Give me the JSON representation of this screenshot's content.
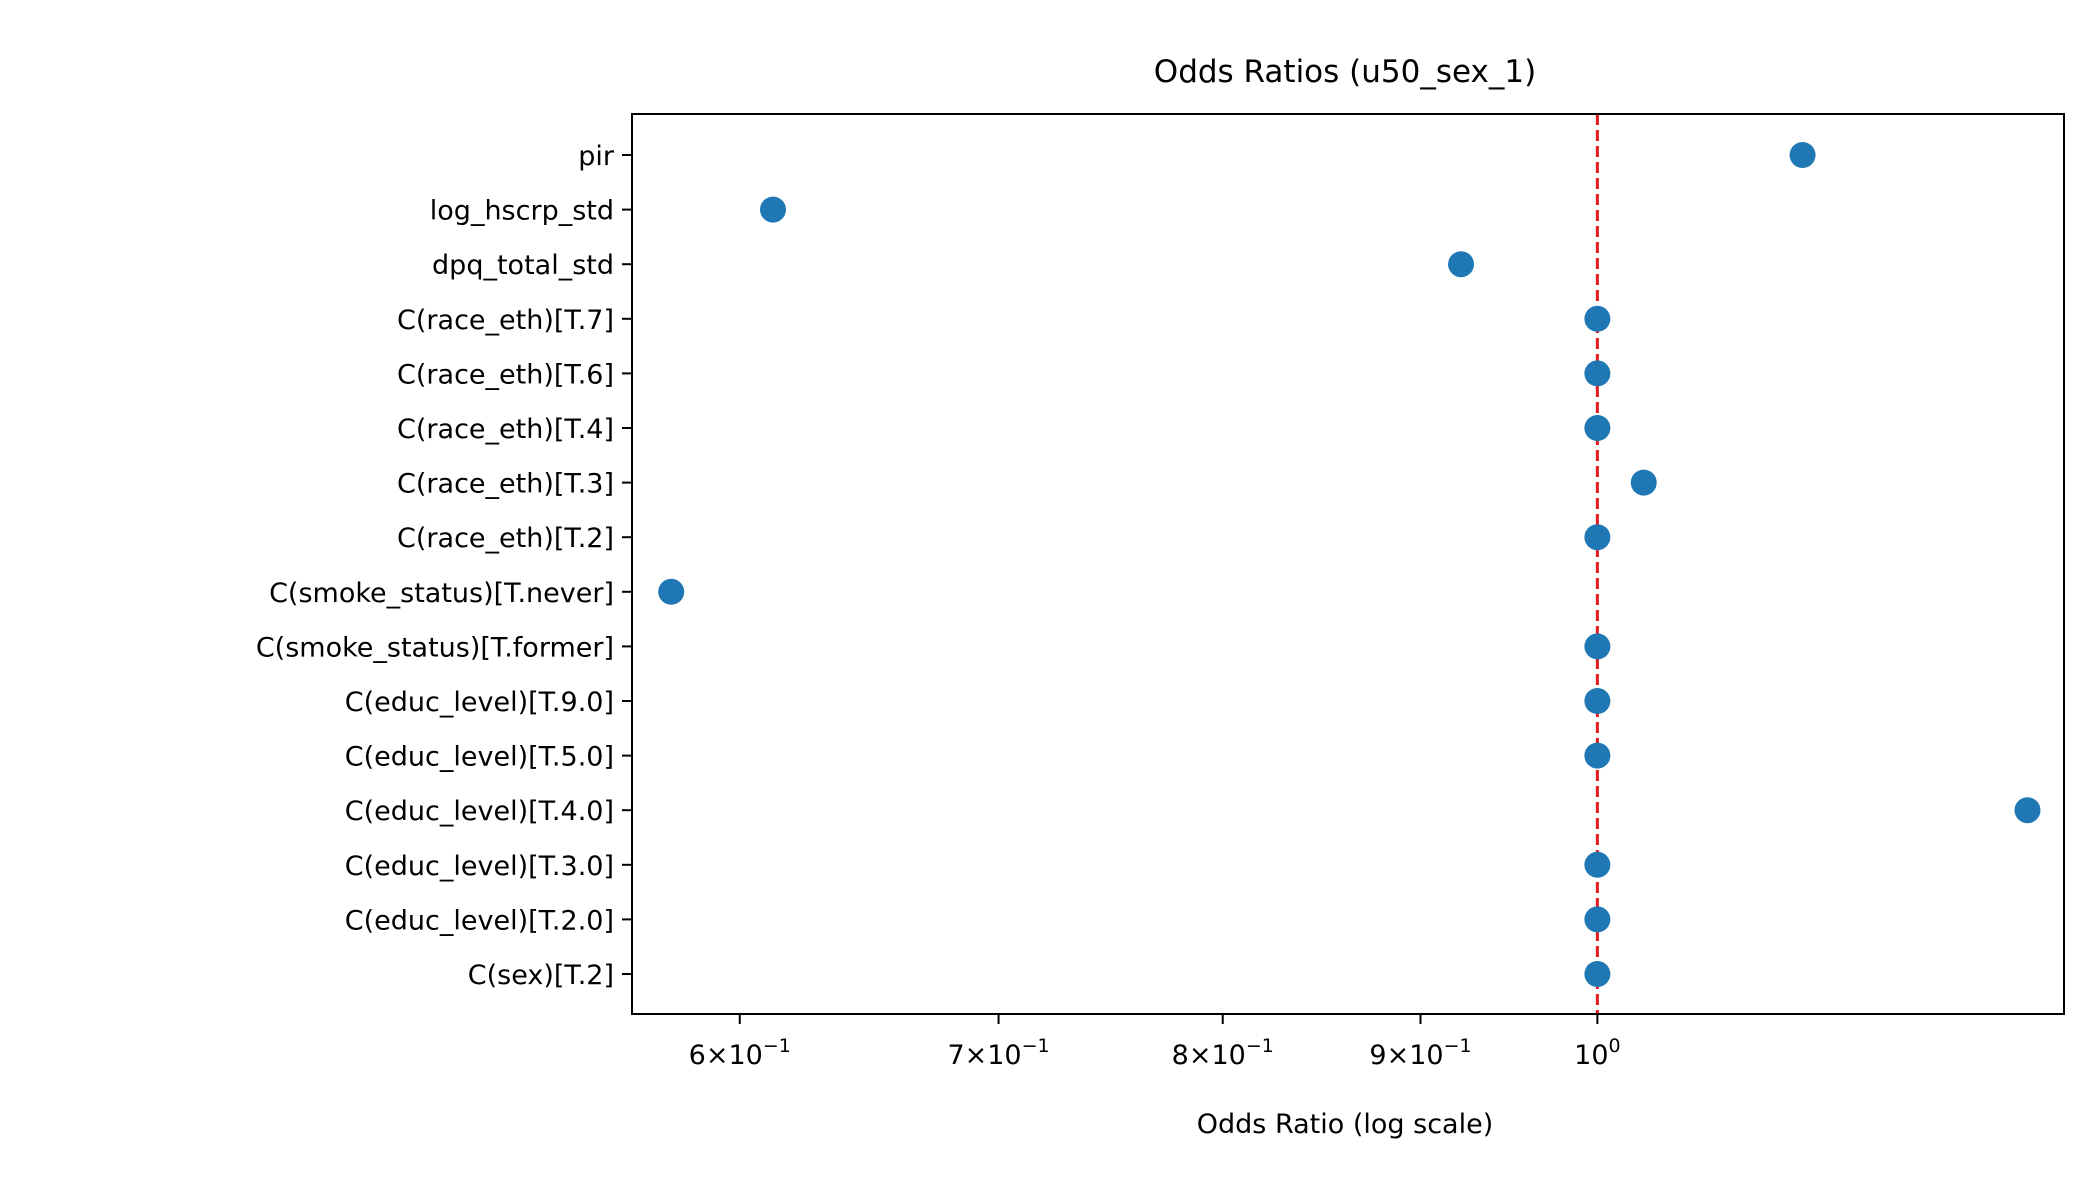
{
  "chart_data": {
    "type": "scatter",
    "title": "Odds Ratios (u50_sex_1)",
    "xlabel": "Odds Ratio (log scale)",
    "ylabel": "",
    "xscale": "log",
    "xlim": [
      0.5627,
      1.3204
    ],
    "reference_line": {
      "x": 1.0,
      "style": "dashed",
      "color": "#e41a1c"
    },
    "marker_color": "#1f77b4",
    "grid": false,
    "legend": "none",
    "x_ticks": [
      {
        "value": 0.6,
        "mantissa": "6",
        "exponent": "−1"
      },
      {
        "value": 0.7,
        "mantissa": "7",
        "exponent": "−1"
      },
      {
        "value": 0.8,
        "mantissa": "8",
        "exponent": "−1"
      },
      {
        "value": 0.9,
        "mantissa": "9",
        "exponent": "−1"
      },
      {
        "value": 1.0,
        "mantissa": "",
        "exponent": "0"
      }
    ],
    "categories": [
      "pir",
      "log_hscrp_std",
      "dpq_total_std",
      "C(race_eth)[T.7]",
      "C(race_eth)[T.6]",
      "C(race_eth)[T.4]",
      "C(race_eth)[T.3]",
      "C(race_eth)[T.2]",
      "C(smoke_status)[T.never]",
      "C(smoke_status)[T.former]",
      "C(educ_level)[T.9.0]",
      "C(educ_level)[T.5.0]",
      "C(educ_level)[T.4.0]",
      "C(educ_level)[T.3.0]",
      "C(educ_level)[T.2.0]",
      "C(sex)[T.2]"
    ],
    "values": [
      1.13,
      0.612,
      0.922,
      1.0,
      1.0,
      1.0,
      1.028,
      1.0,
      0.576,
      1.0,
      1.0,
      1.0,
      1.292,
      1.0,
      1.0,
      1.0
    ]
  }
}
